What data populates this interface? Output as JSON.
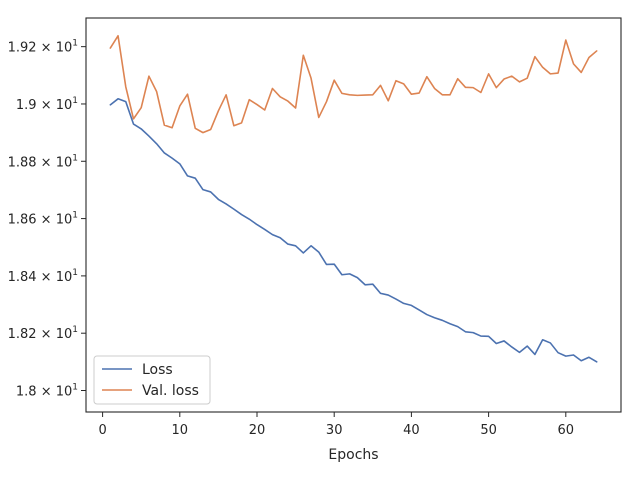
{
  "chart_data": {
    "type": "line",
    "title": "",
    "xlabel": "Epochs",
    "ylabel": "",
    "xlim": [
      -2.15,
      67.15
    ],
    "ylim": [
      17.925,
      19.3
    ],
    "x_ticks": [
      0,
      10,
      20,
      30,
      40,
      50,
      60
    ],
    "x_tick_labels": [
      "0",
      "10",
      "20",
      "30",
      "40",
      "50",
      "60"
    ],
    "y_ticks": [
      18.0,
      18.2,
      18.4,
      18.6,
      18.8,
      19.0,
      19.2
    ],
    "y_tick_labels": [
      {
        "mantissa": "1.8",
        "exponent": "1"
      },
      {
        "mantissa": "1.82",
        "exponent": "1"
      },
      {
        "mantissa": "1.84",
        "exponent": "1"
      },
      {
        "mantissa": "1.86",
        "exponent": "1"
      },
      {
        "mantissa": "1.88",
        "exponent": "1"
      },
      {
        "mantissa": "1.9",
        "exponent": "1"
      },
      {
        "mantissa": "1.92",
        "exponent": "1"
      }
    ],
    "grid": false,
    "legend_position": "lower-left",
    "x": [
      1,
      2,
      3,
      4,
      5,
      6,
      7,
      8,
      9,
      10,
      11,
      12,
      13,
      14,
      15,
      16,
      17,
      18,
      19,
      20,
      21,
      22,
      23,
      24,
      25,
      26,
      27,
      28,
      29,
      30,
      31,
      32,
      33,
      34,
      35,
      36,
      37,
      38,
      39,
      40,
      41,
      42,
      43,
      44,
      45,
      46,
      47,
      48,
      49,
      50,
      51,
      52,
      53,
      54,
      55,
      56,
      57,
      58,
      59,
      60,
      61,
      62,
      63,
      64
    ],
    "series": [
      {
        "name": "Loss",
        "color": "#4c72b0",
        "values": [
          18.997,
          19.018,
          19.008,
          18.93,
          18.913,
          18.888,
          18.861,
          18.829,
          18.811,
          18.791,
          18.749,
          18.741,
          18.701,
          18.693,
          18.667,
          18.651,
          18.633,
          18.614,
          18.598,
          18.579,
          18.562,
          18.544,
          18.533,
          18.511,
          18.505,
          18.48,
          18.505,
          18.483,
          18.44,
          18.441,
          18.404,
          18.407,
          18.394,
          18.369,
          18.371,
          18.339,
          18.333,
          18.319,
          18.304,
          18.297,
          18.281,
          18.265,
          18.254,
          18.245,
          18.233,
          18.223,
          18.205,
          18.202,
          18.19,
          18.189,
          18.164,
          18.173,
          18.152,
          18.133,
          18.155,
          18.126,
          18.177,
          18.166,
          18.132,
          18.12,
          18.124,
          18.104,
          18.116,
          18.1
        ]
      },
      {
        "name": "Val. loss",
        "color": "#dd8452",
        "values": [
          19.195,
          19.238,
          19.06,
          18.948,
          18.987,
          19.097,
          19.043,
          18.926,
          18.917,
          18.993,
          19.034,
          18.915,
          18.9,
          18.911,
          18.976,
          19.032,
          18.924,
          18.934,
          19.015,
          18.998,
          18.979,
          19.054,
          19.025,
          19.01,
          18.986,
          19.17,
          19.09,
          18.953,
          19.008,
          19.083,
          19.037,
          19.032,
          19.03,
          19.031,
          19.032,
          19.065,
          19.011,
          19.081,
          19.07,
          19.034,
          19.038,
          19.095,
          19.054,
          19.032,
          19.032,
          19.088,
          19.058,
          19.057,
          19.04,
          19.105,
          19.057,
          19.087,
          19.097,
          19.077,
          19.09,
          19.165,
          19.128,
          19.105,
          19.108,
          19.223,
          19.14,
          19.11,
          19.162,
          19.185
        ]
      }
    ]
  }
}
